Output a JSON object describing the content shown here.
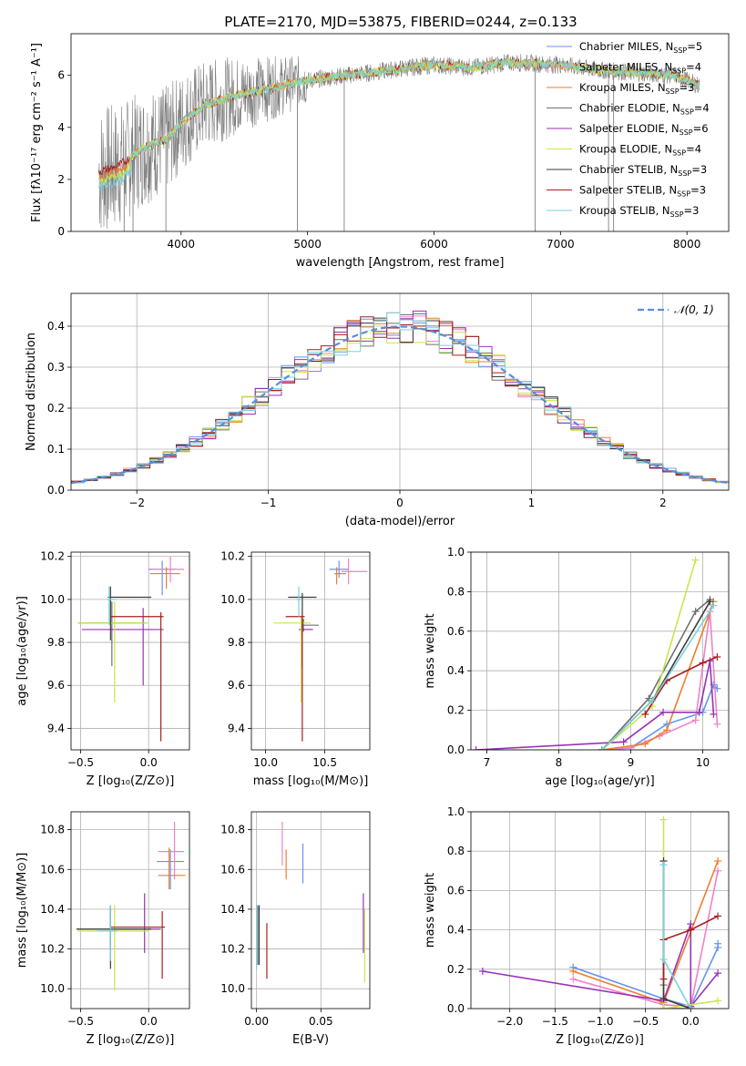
{
  "figure": {
    "title": "PLATE=2170, MJD=53875, FIBERID=0244, z=0.133"
  },
  "colors": {
    "chabrier_miles": "#6495ed",
    "salpeter_miles": "#ee82c8",
    "kroupa_miles": "#f07d2d",
    "chabrier_elodie": "#707070",
    "salpeter_elodie": "#9932b4",
    "kroupa_elodie": "#c8e650",
    "chabrier_stelib": "#3c3c3c",
    "salpeter_stelib": "#aa1e1e",
    "kroupa_stelib": "#78d2dc",
    "gaussian": "#5a8cdc"
  },
  "legend": [
    {
      "name": "Chabrier MILES, N",
      "sub": "SSP",
      "suffix": "=5",
      "color": "chabrier_miles"
    },
    {
      "name": "Salpeter MILES, N",
      "sub": "SSP",
      "suffix": "=4",
      "color": "salpeter_miles"
    },
    {
      "name": "Kroupa MILES, N",
      "sub": "SSP",
      "suffix": "=3",
      "color": "kroupa_miles"
    },
    {
      "name": "Chabrier ELODIE, N",
      "sub": "SSP",
      "suffix": "=4",
      "color": "chabrier_elodie"
    },
    {
      "name": "Salpeter ELODIE, N",
      "sub": "SSP",
      "suffix": "=6",
      "color": "salpeter_elodie"
    },
    {
      "name": "Kroupa ELODIE, N",
      "sub": "SSP",
      "suffix": "=4",
      "color": "kroupa_elodie"
    },
    {
      "name": "Chabrier STELIB, N",
      "sub": "SSP",
      "suffix": "=3",
      "color": "chabrier_stelib"
    },
    {
      "name": "Salpeter STELIB, N",
      "sub": "SSP",
      "suffix": "=3",
      "color": "salpeter_stelib"
    },
    {
      "name": "Kroupa STELIB, N",
      "sub": "SSP",
      "suffix": "=3",
      "color": "kroupa_stelib"
    }
  ],
  "chart_data": [
    {
      "id": "spectrum",
      "type": "line",
      "xlabel": "wavelength [Angstrom, rest frame]",
      "ylabel": "Flux [fλ10⁻¹⁷ erg cm⁻² s⁻¹ A⁻¹]",
      "xlim": [
        3130,
        8330
      ],
      "ylim": [
        0,
        7.6
      ],
      "xticks": [
        4000,
        5000,
        6000,
        7000,
        8000
      ],
      "yticks": [
        0,
        2,
        4,
        6
      ],
      "data_envelope": [
        [
          3350,
          2.3
        ],
        [
          3500,
          2.5
        ],
        [
          3700,
          3.2
        ],
        [
          3900,
          3.6
        ],
        [
          4000,
          4.2
        ],
        [
          4200,
          4.9
        ],
        [
          4500,
          5.3
        ],
        [
          4800,
          5.6
        ],
        [
          5000,
          5.8
        ],
        [
          5300,
          6.0
        ],
        [
          5500,
          6.1
        ],
        [
          5800,
          6.3
        ],
        [
          6000,
          6.4
        ],
        [
          6300,
          6.3
        ],
        [
          6600,
          6.5
        ],
        [
          7000,
          6.4
        ],
        [
          7300,
          6.2
        ],
        [
          7600,
          6.1
        ],
        [
          7900,
          6.0
        ],
        [
          8100,
          5.6
        ]
      ],
      "data_dips": [
        [
          3550,
          0.0
        ],
        [
          3620,
          0.0
        ],
        [
          3880,
          0.0
        ],
        [
          4920,
          0.0
        ],
        [
          5290,
          0.0
        ],
        [
          6800,
          0.0
        ],
        [
          7380,
          0.0
        ],
        [
          7420,
          0.0
        ]
      ]
    },
    {
      "id": "residual-histogram",
      "type": "histogram",
      "xlabel": "(data-model)/error",
      "ylabel": "Normed distribution",
      "xlim": [
        -2.5,
        2.5
      ],
      "ylim": [
        0,
        0.48
      ],
      "xticks": [
        -2,
        -1,
        0,
        1,
        2
      ],
      "yticks": [
        0.0,
        0.1,
        0.2,
        0.3,
        0.4
      ],
      "bin_width": 0.1,
      "gaussian_label": "𝒩(0, 1)"
    },
    {
      "id": "age-vs-metallicity",
      "type": "errorbar",
      "xlabel": "Z [log₁₀(Z/Z⊙)]",
      "ylabel": "age  [log₁₀(age/yr)]",
      "xlim": [
        -0.57,
        0.3
      ],
      "ylim": [
        9.3,
        10.22
      ],
      "xticks": [
        -0.5,
        0.0
      ],
      "yticks": [
        9.4,
        9.6,
        9.8,
        10.0,
        10.2
      ],
      "points": [
        {
          "series": "chabrier_miles",
          "x": 0.1,
          "y": 10.14,
          "xerr": [
            0.1,
            0.1
          ],
          "yerr": [
            0.12,
            0.04
          ]
        },
        {
          "series": "salpeter_miles",
          "x": 0.16,
          "y": 10.14,
          "xerr": [
            0.14,
            0.1
          ],
          "yerr": [
            0.06,
            0.06
          ]
        },
        {
          "series": "kroupa_miles",
          "x": 0.13,
          "y": 10.12,
          "xerr": [
            0.12,
            0.1
          ],
          "yerr": [
            0.07,
            0.03
          ]
        },
        {
          "series": "chabrier_elodie",
          "x": -0.27,
          "y": 9.89,
          "xerr": [
            0.25,
            0.25
          ],
          "yerr": [
            0.2,
            0.1
          ]
        },
        {
          "series": "salpeter_elodie",
          "x": -0.04,
          "y": 9.86,
          "xerr": [
            0.45,
            0.15
          ],
          "yerr": [
            0.26,
            0.1
          ]
        },
        {
          "series": "kroupa_elodie",
          "x": -0.25,
          "y": 9.89,
          "xerr": [
            0.27,
            0.25
          ],
          "yerr": [
            0.37,
            0.1
          ]
        },
        {
          "series": "chabrier_stelib",
          "x": -0.28,
          "y": 10.01,
          "xerr": [
            0.02,
            0.3
          ],
          "yerr": [
            0.2,
            0.05
          ]
        },
        {
          "series": "salpeter_stelib",
          "x": 0.09,
          "y": 9.92,
          "xerr": [
            0.37,
            0.02
          ],
          "yerr": [
            0.58,
            0.02
          ]
        },
        {
          "series": "kroupa_stelib",
          "x": -0.29,
          "y": 10.0,
          "xerr": [
            0.02,
            0.05
          ],
          "yerr": [
            0.12,
            0.06
          ]
        }
      ]
    },
    {
      "id": "age-vs-mass",
      "type": "errorbar",
      "xlabel": "mass [log₁₀(M/M⊙)]",
      "ylabel": "",
      "xlim": [
        9.88,
        10.88
      ],
      "ylim": [
        9.3,
        10.22
      ],
      "xticks": [
        10.0,
        10.5
      ],
      "yticks": [
        9.4,
        9.6,
        9.8,
        10.0,
        10.2
      ],
      "points": [
        {
          "series": "chabrier_miles",
          "x": 10.62,
          "y": 10.14,
          "xerr": [
            0.08,
            0.08
          ],
          "yerr": [
            0.04,
            0.04
          ]
        },
        {
          "series": "salpeter_miles",
          "x": 10.7,
          "y": 10.13,
          "xerr": [
            0.06,
            0.16
          ],
          "yerr": [
            0.06,
            0.06
          ]
        },
        {
          "series": "kroupa_miles",
          "x": 10.6,
          "y": 10.12,
          "xerr": [
            0.02,
            0.08
          ],
          "yerr": [
            0.05,
            0.03
          ]
        },
        {
          "series": "chabrier_elodie",
          "x": 10.32,
          "y": 9.88,
          "xerr": [
            0.02,
            0.13
          ],
          "yerr": [
            0.03,
            0.03
          ]
        },
        {
          "series": "salpeter_elodie",
          "x": 10.3,
          "y": 9.86,
          "xerr": [
            0.02,
            0.1
          ],
          "yerr": [
            0.03,
            0.03
          ]
        },
        {
          "series": "kroupa_elodie",
          "x": 10.3,
          "y": 9.89,
          "xerr": [
            0.23,
            0.08
          ],
          "yerr": [
            0.37,
            0.03
          ]
        },
        {
          "series": "chabrier_stelib",
          "x": 10.31,
          "y": 10.01,
          "xerr": [
            0.12,
            0.12
          ],
          "yerr": [
            0.33,
            0.02
          ]
        },
        {
          "series": "salpeter_stelib",
          "x": 10.31,
          "y": 9.92,
          "xerr": [
            0.14,
            0.02
          ],
          "yerr": [
            0.58,
            0.02
          ]
        },
        {
          "series": "kroupa_stelib",
          "x": 10.28,
          "y": 10.0,
          "xerr": [
            0.02,
            0.02
          ],
          "yerr": [
            0.08,
            0.06
          ]
        }
      ]
    },
    {
      "id": "mass-weight-vs-age",
      "type": "line",
      "xlabel": "age  [log₁₀(age/yr)]",
      "ylabel": "mass weight",
      "xlim": [
        6.78,
        10.36
      ],
      "ylim": [
        0,
        1.0
      ],
      "xticks": [
        7,
        8,
        9,
        10
      ],
      "yticks": [
        0.0,
        0.2,
        0.4,
        0.6,
        0.8,
        1.0
      ],
      "series": [
        {
          "series": "chabrier_miles",
          "x": [
            8.6,
            9.0,
            9.5,
            10.0,
            10.15,
            10.2
          ],
          "y": [
            0.0,
            0.01,
            0.13,
            0.19,
            0.33,
            0.31
          ]
        },
        {
          "series": "salpeter_miles",
          "x": [
            8.6,
            9.0,
            9.4,
            9.9,
            10.1,
            10.2
          ],
          "y": [
            0.0,
            0.01,
            0.07,
            0.15,
            0.7,
            0.13
          ]
        },
        {
          "series": "kroupa_miles",
          "x": [
            8.6,
            9.2,
            9.5,
            10.15
          ],
          "y": [
            0.0,
            0.03,
            0.1,
            0.75
          ]
        },
        {
          "series": "chabrier_elodie",
          "x": [
            8.6,
            9.25,
            9.9,
            10.1
          ],
          "y": [
            0.0,
            0.26,
            0.7,
            0.76
          ]
        },
        {
          "series": "salpeter_elodie",
          "x": [
            6.85,
            8.9,
            9.45,
            9.95,
            10.1,
            10.15
          ],
          "y": [
            0.0,
            0.04,
            0.19,
            0.19,
            0.45,
            0.18
          ]
        },
        {
          "series": "kroupa_elodie",
          "x": [
            8.6,
            9.3,
            9.9
          ],
          "y": [
            0.0,
            0.22,
            0.96
          ]
        },
        {
          "series": "chabrier_stelib",
          "x": [
            8.6,
            9.3,
            10.1
          ],
          "y": [
            0.0,
            0.25,
            0.75
          ]
        },
        {
          "series": "salpeter_stelib",
          "x": [
            9.2,
            9.5,
            10.0,
            10.2
          ],
          "y": [
            0.18,
            0.35,
            0.44,
            0.47
          ]
        },
        {
          "series": "kroupa_stelib",
          "x": [
            8.6,
            9.3,
            10.15
          ],
          "y": [
            0.0,
            0.25,
            0.73
          ]
        }
      ]
    },
    {
      "id": "mass-vs-metallicity",
      "type": "errorbar",
      "xlabel": "Z [log₁₀(Z/Z⊙)]",
      "ylabel": "mass [log₁₀(M/M⊙)]",
      "xlim": [
        -0.57,
        0.3
      ],
      "ylim": [
        9.9,
        10.89
      ],
      "xticks": [
        -0.5,
        0.0
      ],
      "yticks": [
        10.0,
        10.2,
        10.4,
        10.6,
        10.8
      ],
      "points": [
        {
          "series": "chabrier_miles",
          "x": 0.16,
          "y": 10.64,
          "xerr": [
            0.1,
            0.1
          ],
          "yerr": [
            0.14,
            0.06
          ]
        },
        {
          "series": "salpeter_miles",
          "x": 0.19,
          "y": 10.69,
          "xerr": [
            0.12,
            0.07
          ],
          "yerr": [
            0.14,
            0.15
          ]
        },
        {
          "series": "kroupa_miles",
          "x": 0.15,
          "y": 10.57,
          "xerr": [
            0.08,
            0.12
          ],
          "yerr": [
            0.07,
            0.14
          ]
        },
        {
          "series": "chabrier_elodie",
          "x": -0.28,
          "y": 10.3,
          "xerr": [
            0.25,
            0.2
          ],
          "yerr": [
            0.1,
            0.11
          ]
        },
        {
          "series": "salpeter_elodie",
          "x": -0.03,
          "y": 10.3,
          "xerr": [
            0.22,
            0.12
          ],
          "yerr": [
            0.12,
            0.18
          ]
        },
        {
          "series": "kroupa_elodie",
          "x": -0.25,
          "y": 10.29,
          "xerr": [
            0.27,
            0.25
          ],
          "yerr": [
            0.3,
            0.13
          ]
        },
        {
          "series": "chabrier_stelib",
          "x": -0.28,
          "y": 10.3,
          "xerr": [
            0.25,
            0.3
          ],
          "yerr": [
            0.2,
            0.12
          ]
        },
        {
          "series": "salpeter_stelib",
          "x": 0.1,
          "y": 10.31,
          "xerr": [
            0.38,
            0.02
          ],
          "yerr": [
            0.26,
            0.08
          ]
        },
        {
          "series": "kroupa_stelib",
          "x": -0.28,
          "y": 10.29,
          "xerr": [
            0.1,
            0.05
          ],
          "yerr": [
            0.15,
            0.13
          ]
        }
      ]
    },
    {
      "id": "mass-vs-extinction",
      "type": "errorbar",
      "xlabel": "E(B-V)",
      "ylabel": "",
      "xlim": [
        -0.004,
        0.088
      ],
      "ylim": [
        9.9,
        10.89
      ],
      "xticks": [
        0.0,
        0.05
      ],
      "yticks": [
        10.0,
        10.2,
        10.4,
        10.6,
        10.8
      ],
      "points": [
        {
          "series": "chabrier_miles",
          "x": 0.036,
          "y": 10.63,
          "xerr": [
            0.0,
            0.0
          ],
          "yerr": [
            0.1,
            0.1
          ]
        },
        {
          "series": "salpeter_miles",
          "x": 0.02,
          "y": 10.72,
          "xerr": [
            0.0,
            0.0
          ],
          "yerr": [
            0.1,
            0.12
          ]
        },
        {
          "series": "kroupa_miles",
          "x": 0.023,
          "y": 10.6,
          "xerr": [
            0.0,
            0.0
          ],
          "yerr": [
            0.05,
            0.1
          ]
        },
        {
          "series": "chabrier_elodie",
          "x": 0.001,
          "y": 10.3,
          "xerr": [
            0.0,
            0.0
          ],
          "yerr": [
            0.18,
            0.12
          ]
        },
        {
          "series": "salpeter_elodie",
          "x": 0.083,
          "y": 10.3,
          "xerr": [
            0.0,
            0.0
          ],
          "yerr": [
            0.12,
            0.18
          ]
        },
        {
          "series": "kroupa_elodie",
          "x": 0.084,
          "y": 10.25,
          "xerr": [
            0.0,
            0.0
          ],
          "yerr": [
            0.22,
            0.15
          ]
        },
        {
          "series": "chabrier_stelib",
          "x": 0.002,
          "y": 10.3,
          "xerr": [
            0.0,
            0.0
          ],
          "yerr": [
            0.18,
            0.12
          ]
        },
        {
          "series": "salpeter_stelib",
          "x": 0.008,
          "y": 10.2,
          "xerr": [
            0.0,
            0.0
          ],
          "yerr": [
            0.15,
            0.13
          ]
        },
        {
          "series": "kroupa_stelib",
          "x": 0.0,
          "y": 10.3,
          "xerr": [
            0.0,
            0.0
          ],
          "yerr": [
            0.2,
            0.12
          ]
        }
      ]
    },
    {
      "id": "mass-weight-vs-metallicity",
      "type": "line",
      "xlabel": "Z [log₁₀(Z/Z⊙)]",
      "ylabel": "mass weight",
      "xlim": [
        -2.43,
        0.42
      ],
      "ylim": [
        0,
        1.0
      ],
      "xticks": [
        -2.0,
        -1.5,
        -1.0,
        -0.5,
        0.0
      ],
      "yticks": [
        0.0,
        0.2,
        0.4,
        0.6,
        0.8,
        1.0
      ],
      "series": [
        {
          "series": "chabrier_miles",
          "x": [
            -1.3,
            -0.3,
            0.0,
            0.3,
            0.3
          ],
          "y": [
            0.21,
            0.05,
            0.01,
            0.31,
            0.33
          ]
        },
        {
          "series": "salpeter_miles",
          "x": [
            -1.3,
            -0.3,
            0.0,
            0.3
          ],
          "y": [
            0.15,
            0.02,
            0.01,
            0.7
          ]
        },
        {
          "series": "kroupa_miles",
          "x": [
            -1.3,
            -0.3,
            0.3
          ],
          "y": [
            0.19,
            0.03,
            0.75
          ]
        },
        {
          "series": "chabrier_elodie",
          "x": [
            -0.3,
            -0.3,
            0.0
          ],
          "y": [
            0.12,
            0.0,
            0.0
          ]
        },
        {
          "series": "salpeter_elodie",
          "x": [
            -2.3,
            -0.3,
            0.0,
            0.0,
            0.3
          ],
          "y": [
            0.19,
            0.04,
            0.43,
            0.01,
            0.18
          ]
        },
        {
          "series": "kroupa_elodie",
          "x": [
            -0.3,
            -0.3,
            0.3
          ],
          "y": [
            0.96,
            0.0,
            0.04
          ]
        },
        {
          "series": "chabrier_stelib",
          "x": [
            -0.3,
            -0.3,
            0.0
          ],
          "y": [
            0.75,
            0.05,
            0.0
          ]
        },
        {
          "series": "salpeter_stelib",
          "x": [
            -0.3,
            -0.3,
            0.0,
            0.3
          ],
          "y": [
            0.15,
            0.35,
            0.4,
            0.47
          ]
        },
        {
          "series": "kroupa_stelib",
          "x": [
            -0.3,
            -0.3,
            0.0
          ],
          "y": [
            0.73,
            0.25,
            0.0
          ]
        }
      ]
    }
  ]
}
